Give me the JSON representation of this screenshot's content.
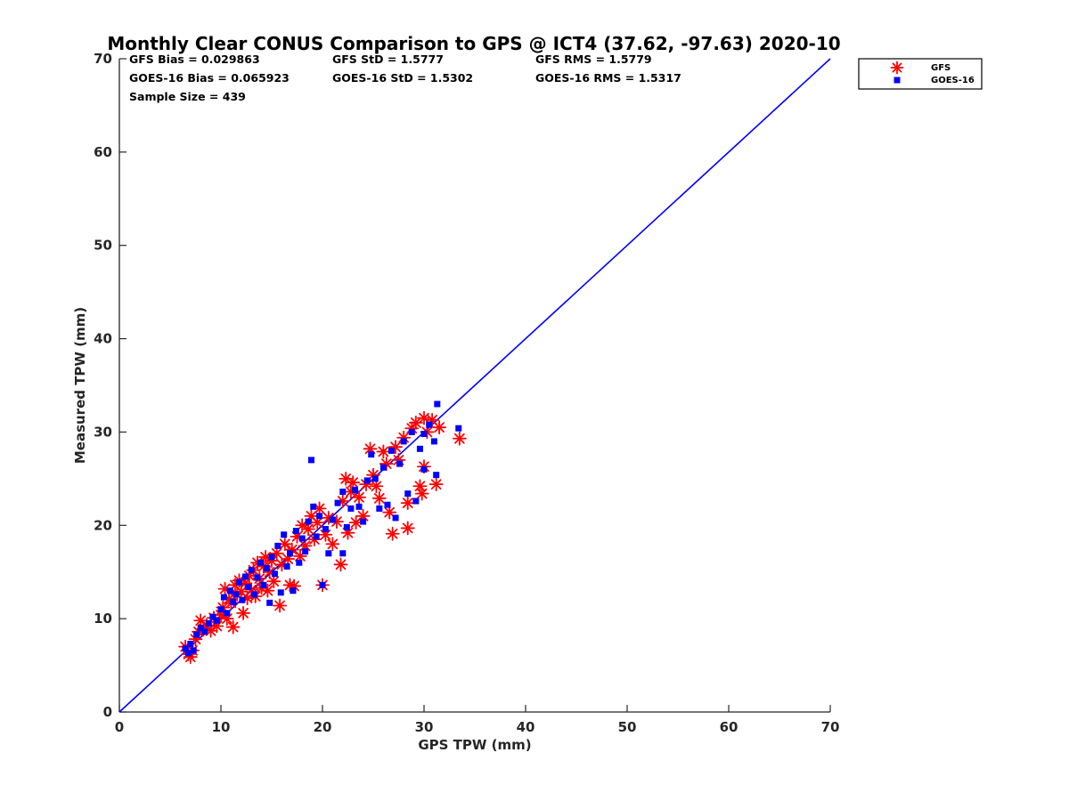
{
  "chart_data": {
    "type": "scatter",
    "title": "Monthly Clear CONUS Comparison to GPS @ ICT4 (37.62, -97.63) 2020-10",
    "xlabel": "GPS TPW (mm)",
    "ylabel": "Measured TPW (mm)",
    "xlim": [
      0,
      70
    ],
    "ylim": [
      0,
      70
    ],
    "xticks": [
      "0",
      "10",
      "20",
      "30",
      "40",
      "50",
      "60",
      "70"
    ],
    "yticks": [
      "0",
      "10",
      "20",
      "30",
      "40",
      "50",
      "60",
      "70"
    ],
    "grid": false,
    "legend_position": "top-right-outside",
    "reference_line": {
      "name": "1:1 line",
      "x": [
        0,
        70
      ],
      "y": [
        0,
        70
      ],
      "color": "#0000ff"
    },
    "stats": {
      "gfs_bias": "GFS Bias = 0.029863",
      "goes_bias": "GOES-16 Bias = 0.065923",
      "sample_size": "Sample Size = 439",
      "gfs_std": "GFS StD = 1.5777",
      "goes_std": "GOES-16 StD = 1.5302",
      "gfs_rms": "GFS RMS = 1.5779",
      "goes_rms": "GOES-16 RMS = 1.5317"
    },
    "series": [
      {
        "name": "GFS",
        "marker": "asterisk",
        "color": "#ff0000",
        "points": [
          [
            6.5,
            7.0
          ],
          [
            6.8,
            6.2
          ],
          [
            7.0,
            5.9
          ],
          [
            7.2,
            6.6
          ],
          [
            7.5,
            7.8
          ],
          [
            7.8,
            8.6
          ],
          [
            8.0,
            9.8
          ],
          [
            8.3,
            8.9
          ],
          [
            8.6,
            9.3
          ],
          [
            9.0,
            8.7
          ],
          [
            9.3,
            10.1
          ],
          [
            9.6,
            9.2
          ],
          [
            10.0,
            10.4
          ],
          [
            10.2,
            11.2
          ],
          [
            10.4,
            13.2
          ],
          [
            10.6,
            10.0
          ],
          [
            10.8,
            12.1
          ],
          [
            11.0,
            11.7
          ],
          [
            11.2,
            9.1
          ],
          [
            11.4,
            13.6
          ],
          [
            11.6,
            12.6
          ],
          [
            11.8,
            14.1
          ],
          [
            12.0,
            12.9
          ],
          [
            12.2,
            10.6
          ],
          [
            12.4,
            13.8
          ],
          [
            12.6,
            12.2
          ],
          [
            12.8,
            14.6
          ],
          [
            13.0,
            13.1
          ],
          [
            13.2,
            15.2
          ],
          [
            13.4,
            12.4
          ],
          [
            13.6,
            16.0
          ],
          [
            13.8,
            14.3
          ],
          [
            14.0,
            13.3
          ],
          [
            14.2,
            15.6
          ],
          [
            14.4,
            16.6
          ],
          [
            14.6,
            13.0
          ],
          [
            14.8,
            15.0
          ],
          [
            15.0,
            16.2
          ],
          [
            15.2,
            14.0
          ],
          [
            15.5,
            17.0
          ],
          [
            15.8,
            11.4
          ],
          [
            16.0,
            15.8
          ],
          [
            16.3,
            18.0
          ],
          [
            16.6,
            16.4
          ],
          [
            16.8,
            13.6
          ],
          [
            17.0,
            17.4
          ],
          [
            17.2,
            13.5
          ],
          [
            17.5,
            18.8
          ],
          [
            17.8,
            16.7
          ],
          [
            18.0,
            20.0
          ],
          [
            18.3,
            17.8
          ],
          [
            18.6,
            19.6
          ],
          [
            18.9,
            21.0
          ],
          [
            19.2,
            18.5
          ],
          [
            19.5,
            20.3
          ],
          [
            19.7,
            21.8
          ],
          [
            20.0,
            13.6
          ],
          [
            20.3,
            19.0
          ],
          [
            20.6,
            20.8
          ],
          [
            21.0,
            18.0
          ],
          [
            21.4,
            20.4
          ],
          [
            21.8,
            15.8
          ],
          [
            22.0,
            22.6
          ],
          [
            22.3,
            25.0
          ],
          [
            22.5,
            19.2
          ],
          [
            22.8,
            23.6
          ],
          [
            23.0,
            24.6
          ],
          [
            23.3,
            20.3
          ],
          [
            23.6,
            23.0
          ],
          [
            24.0,
            21.0
          ],
          [
            24.3,
            24.4
          ],
          [
            24.7,
            28.2
          ],
          [
            25.0,
            25.4
          ],
          [
            25.3,
            24.2
          ],
          [
            25.6,
            22.9
          ],
          [
            26.0,
            27.9
          ],
          [
            26.3,
            26.6
          ],
          [
            26.6,
            21.4
          ],
          [
            26.9,
            19.1
          ],
          [
            27.2,
            28.4
          ],
          [
            27.5,
            27.0
          ],
          [
            28.0,
            29.4
          ],
          [
            28.4,
            22.4
          ],
          [
            28.4,
            19.7
          ],
          [
            28.8,
            30.4
          ],
          [
            29.2,
            31.0
          ],
          [
            29.6,
            24.2
          ],
          [
            29.8,
            23.4
          ],
          [
            30.0,
            31.5
          ],
          [
            30.0,
            26.3
          ],
          [
            30.3,
            30.0
          ],
          [
            30.8,
            31.3
          ],
          [
            31.2,
            24.4
          ],
          [
            31.5,
            30.5
          ],
          [
            33.5,
            29.3
          ]
        ]
      },
      {
        "name": "GOES-16",
        "marker": "square",
        "color": "#0000ff",
        "points": [
          [
            6.5,
            6.8
          ],
          [
            6.8,
            6.3
          ],
          [
            7.0,
            7.3
          ],
          [
            7.3,
            6.6
          ],
          [
            7.6,
            8.3
          ],
          [
            8.0,
            9.0
          ],
          [
            8.4,
            8.6
          ],
          [
            8.8,
            9.5
          ],
          [
            9.2,
            10.2
          ],
          [
            9.6,
            9.8
          ],
          [
            10.0,
            11.0
          ],
          [
            10.3,
            12.3
          ],
          [
            10.6,
            10.6
          ],
          [
            10.9,
            13.0
          ],
          [
            11.2,
            11.8
          ],
          [
            11.5,
            12.6
          ],
          [
            11.8,
            13.9
          ],
          [
            12.1,
            12.0
          ],
          [
            12.4,
            14.5
          ],
          [
            12.7,
            13.4
          ],
          [
            13.0,
            15.2
          ],
          [
            13.3,
            12.6
          ],
          [
            13.6,
            14.4
          ],
          [
            13.9,
            16.0
          ],
          [
            14.2,
            13.6
          ],
          [
            14.5,
            15.4
          ],
          [
            14.8,
            11.7
          ],
          [
            15.0,
            16.6
          ],
          [
            15.3,
            14.8
          ],
          [
            15.6,
            17.8
          ],
          [
            15.9,
            12.8
          ],
          [
            16.2,
            19.0
          ],
          [
            16.5,
            15.6
          ],
          [
            16.8,
            17.0
          ],
          [
            17.1,
            13.0
          ],
          [
            17.4,
            19.4
          ],
          [
            17.7,
            16.0
          ],
          [
            18.0,
            18.6
          ],
          [
            18.3,
            17.2
          ],
          [
            18.6,
            20.4
          ],
          [
            18.9,
            27.0
          ],
          [
            19.1,
            22.0
          ],
          [
            19.4,
            18.8
          ],
          [
            19.7,
            21.0
          ],
          [
            20.0,
            13.6
          ],
          [
            20.3,
            19.6
          ],
          [
            20.6,
            17.0
          ],
          [
            21.0,
            20.6
          ],
          [
            21.5,
            22.4
          ],
          [
            22.0,
            17.0
          ],
          [
            22.0,
            23.6
          ],
          [
            22.4,
            19.8
          ],
          [
            22.8,
            21.8
          ],
          [
            23.2,
            23.8
          ],
          [
            23.6,
            22.0
          ],
          [
            24.0,
            20.4
          ],
          [
            24.4,
            24.8
          ],
          [
            24.8,
            27.6
          ],
          [
            25.2,
            25.0
          ],
          [
            25.6,
            21.8
          ],
          [
            26.0,
            26.2
          ],
          [
            26.4,
            22.2
          ],
          [
            26.8,
            28.0
          ],
          [
            27.2,
            20.8
          ],
          [
            27.6,
            26.6
          ],
          [
            28.0,
            29.0
          ],
          [
            28.4,
            23.4
          ],
          [
            28.8,
            30.0
          ],
          [
            29.2,
            22.6
          ],
          [
            29.6,
            28.2
          ],
          [
            30.0,
            29.8
          ],
          [
            30.0,
            26.0
          ],
          [
            30.5,
            30.8
          ],
          [
            31.0,
            29.0
          ],
          [
            31.2,
            25.4
          ],
          [
            31.3,
            33.0
          ],
          [
            33.4,
            30.4
          ]
        ]
      }
    ]
  }
}
